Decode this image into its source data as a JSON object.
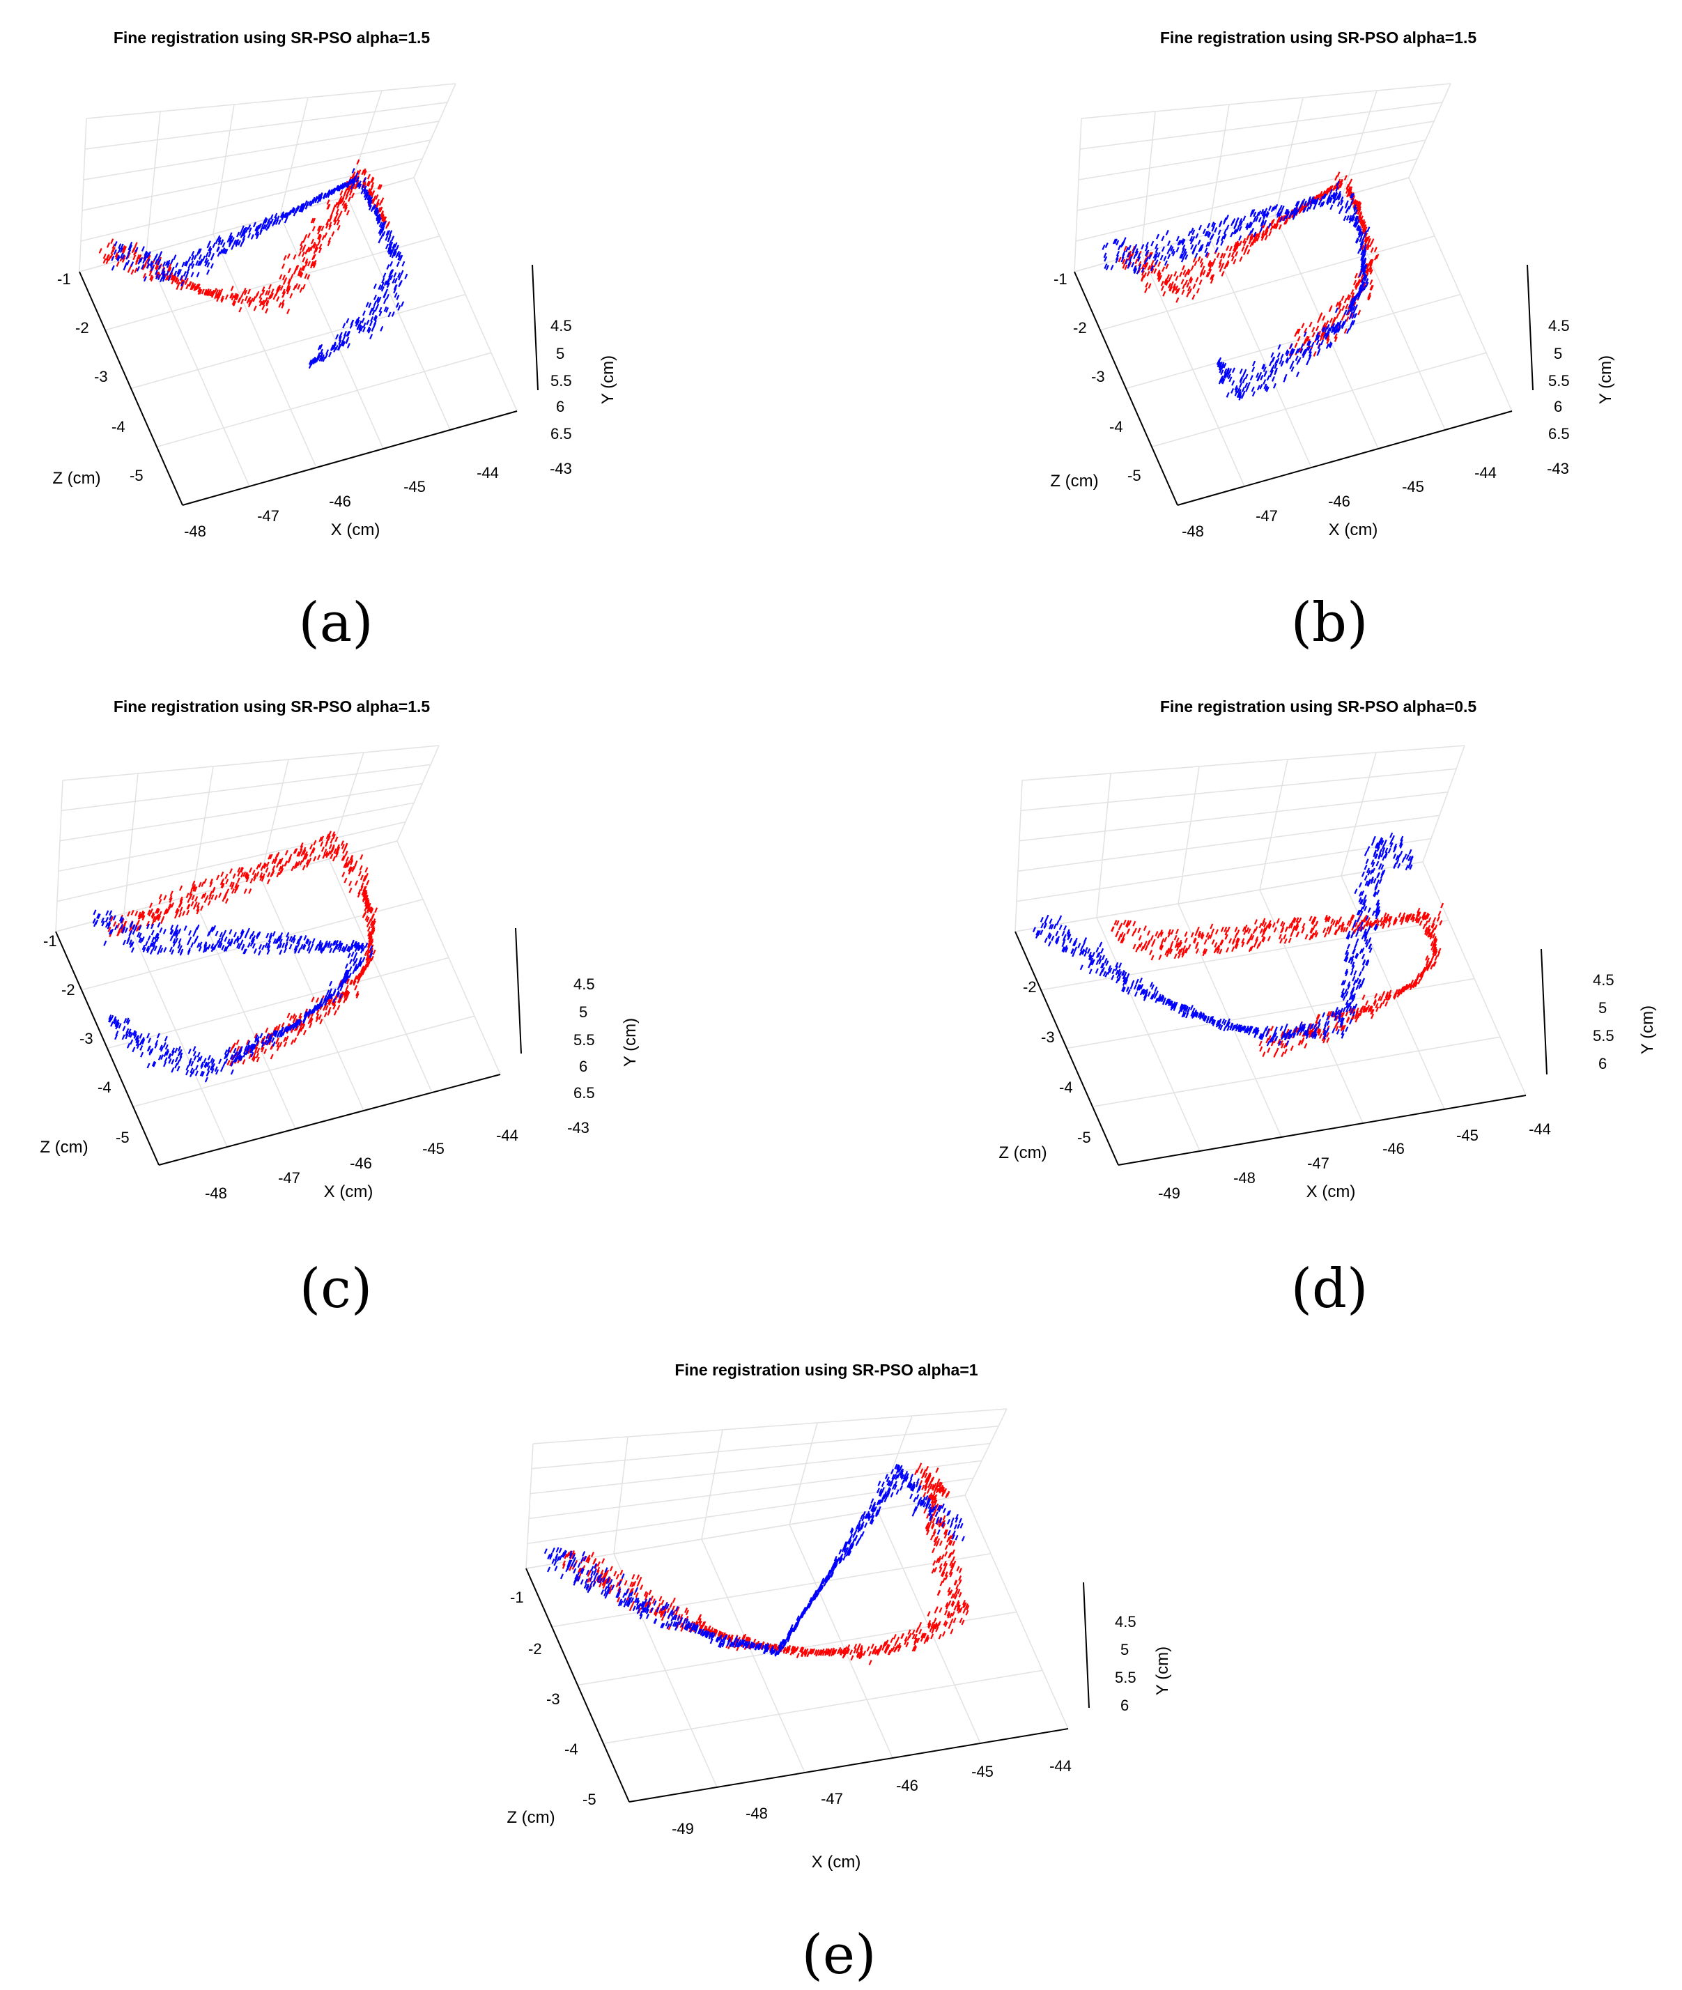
{
  "chart_data": [
    {
      "type": "scatter",
      "id": "a",
      "caption": "(a)",
      "title": "Fine registration using SR-PSO alpha=1.5",
      "xlabel": "X (cm)",
      "ylabel": "Y (cm)",
      "zlabel": "Z (cm)",
      "xticks": [
        "-48",
        "-47",
        "-46",
        "-45",
        "-44",
        "-43"
      ],
      "yticks": [
        "4.5",
        "5",
        "5.5",
        "6",
        "6.5"
      ],
      "zticks": [
        "-1",
        "-2",
        "-3",
        "-4",
        "-5"
      ],
      "xlim": [
        -48.3,
        -43
      ],
      "ylim": [
        4.3,
        6.6
      ],
      "zlim": [
        -5.4,
        -0.6
      ],
      "grid": true,
      "series": [
        {
          "color": "#ff0000",
          "values": [
            [
              -48.0,
              5.0,
              -0.95
            ],
            [
              -47.7,
              5.2,
              -1.1
            ],
            [
              -47.4,
              5.4,
              -1.3
            ],
            [
              -47.1,
              5.7,
              -1.6
            ],
            [
              -46.8,
              5.9,
              -1.85
            ],
            [
              -46.4,
              6.1,
              -2.05
            ],
            [
              -46.0,
              6.25,
              -2.2
            ],
            [
              -45.7,
              6.3,
              -2.25
            ],
            [
              -44.0,
              4.6,
              -0.95
            ],
            [
              -43.9,
              5.0,
              -1.3
            ],
            [
              -43.85,
              5.4,
              -1.8
            ]
          ]
        },
        {
          "color": "#0000ff",
          "values": [
            [
              -47.85,
              5.1,
              -1.0
            ],
            [
              -47.5,
              5.3,
              -1.2
            ],
            [
              -47.2,
              5.6,
              -1.5
            ],
            [
              -44.05,
              4.7,
              -1.0
            ],
            [
              -43.95,
              5.1,
              -1.5
            ],
            [
              -43.9,
              5.5,
              -2.1
            ],
            [
              -44.0,
              5.9,
              -2.6
            ],
            [
              -44.3,
              6.2,
              -3.0
            ],
            [
              -44.8,
              6.4,
              -3.2
            ],
            [
              -45.3,
              6.5,
              -3.4
            ],
            [
              -45.7,
              6.5,
              -3.55
            ]
          ]
        }
      ]
    },
    {
      "type": "scatter",
      "id": "b",
      "caption": "(b)",
      "title": "Fine registration using SR-PSO alpha=1.5",
      "xlabel": "X (cm)",
      "ylabel": "Y (cm)",
      "zlabel": "Z (cm)",
      "xticks": [
        "-48",
        "-47",
        "-46",
        "-45",
        "-44",
        "-43"
      ],
      "yticks": [
        "4.5",
        "5",
        "5.5",
        "6",
        "6.5"
      ],
      "zticks": [
        "-1",
        "-2",
        "-3",
        "-4",
        "-5"
      ],
      "xlim": [
        -48.3,
        -43
      ],
      "ylim": [
        4.3,
        6.6
      ],
      "zlim": [
        -5.4,
        -0.6
      ],
      "grid": true,
      "series": [
        {
          "color": "#ff0000",
          "values": [
            [
              -47.7,
              5.0,
              -1.1
            ],
            [
              -47.4,
              5.3,
              -1.5
            ],
            [
              -47.1,
              5.6,
              -1.8
            ],
            [
              -44.2,
              4.7,
              -1.0
            ],
            [
              -44.1,
              5.1,
              -1.5
            ],
            [
              -44.2,
              5.6,
              -2.3
            ],
            [
              -44.6,
              6.0,
              -2.8
            ],
            [
              -45.2,
              6.3,
              -3.1
            ],
            [
              -45.8,
              6.4,
              -3.3
            ]
          ]
        },
        {
          "color": "#0000ff",
          "values": [
            [
              -47.9,
              5.0,
              -0.9
            ],
            [
              -47.6,
              5.2,
              -1.2
            ],
            [
              -44.3,
              4.8,
              -1.2
            ],
            [
              -44.2,
              5.3,
              -1.9
            ],
            [
              -44.4,
              5.8,
              -2.6
            ],
            [
              -44.9,
              6.2,
              -3.1
            ],
            [
              -45.5,
              6.4,
              -3.3
            ],
            [
              -46.2,
              6.5,
              -3.5
            ],
            [
              -46.8,
              6.5,
              -3.7
            ],
            [
              -46.9,
              6.2,
              -3.1
            ]
          ]
        }
      ]
    },
    {
      "type": "scatter",
      "id": "c",
      "caption": "(c)",
      "title": "Fine registration using SR-PSO alpha=1.5",
      "xlabel": "X (cm)",
      "ylabel": "Y (cm)",
      "zlabel": "Z (cm)",
      "xticks": [
        "-48",
        "-47",
        "-46",
        "-45",
        "-44",
        "-43"
      ],
      "yticks": [
        "4.5",
        "5",
        "5.5",
        "6",
        "6.5"
      ],
      "zticks": [
        "-1",
        "-2",
        "-3",
        "-4",
        "-5"
      ],
      "xlim": [
        -48.3,
        -43
      ],
      "ylim": [
        4.3,
        6.6
      ],
      "zlim": [
        -5.4,
        -0.6
      ],
      "grid": true,
      "series": [
        {
          "color": "#ff0000",
          "values": [
            [
              -47.6,
              5.3,
              -1.3
            ],
            [
              -44.1,
              4.6,
              -1.0
            ],
            [
              -44.0,
              5.0,
              -1.5
            ],
            [
              -43.95,
              5.5,
              -2.2
            ],
            [
              -44.2,
              6.0,
              -2.9
            ],
            [
              -44.7,
              6.3,
              -3.3
            ],
            [
              -45.3,
              6.45,
              -3.5
            ],
            [
              -46.0,
              6.55,
              -3.7
            ],
            [
              -46.7,
              6.6,
              -3.85
            ]
          ]
        },
        {
          "color": "#0000ff",
          "values": [
            [
              -47.8,
              5.1,
              -1.1
            ],
            [
              -47.5,
              5.4,
              -1.5
            ],
            [
              -44.2,
              5.8,
              -2.7
            ],
            [
              -44.8,
              6.2,
              -3.2
            ],
            [
              -45.5,
              6.45,
              -3.55
            ],
            [
              -46.3,
              6.55,
              -3.75
            ],
            [
              -47.0,
              6.6,
              -3.9
            ],
            [
              -47.6,
              6.4,
              -3.6
            ],
            [
              -48.0,
              6.1,
              -3.1
            ],
            [
              -48.2,
              5.9,
              -2.7
            ]
          ]
        }
      ]
    },
    {
      "type": "scatter",
      "id": "d",
      "caption": "(d)",
      "title": "Fine registration using SR-PSO alpha=0.5",
      "xlabel": "X (cm)",
      "ylabel": "Y (cm)",
      "zlabel": "Z (cm)",
      "xticks": [
        "-49",
        "-48",
        "-47",
        "-46",
        "-45",
        "-44"
      ],
      "yticks": [
        "4.5",
        "5",
        "5.5",
        "6"
      ],
      "zticks": [
        "-2",
        "-3",
        "-4",
        "-5"
      ],
      "xlim": [
        -49.4,
        -43.6
      ],
      "ylim": [
        4.3,
        6.2
      ],
      "zlim": [
        -5.4,
        -1.2
      ],
      "grid": true,
      "series": [
        {
          "color": "#ff0000",
          "values": [
            [
              -48.2,
              5.1,
              -1.9
            ],
            [
              -47.8,
              5.3,
              -2.2
            ],
            [
              -44.0,
              5.0,
              -2.6
            ],
            [
              -44.1,
              5.5,
              -3.1
            ],
            [
              -44.5,
              5.8,
              -3.4
            ],
            [
              -45.2,
              6.0,
              -3.6
            ],
            [
              -46.0,
              6.1,
              -3.8
            ],
            [
              -46.8,
              6.1,
              -3.9
            ]
          ]
        },
        {
          "color": "#0000ff",
          "values": [
            [
              -49.2,
              5.0,
              -1.6
            ],
            [
              -48.8,
              5.3,
              -2.0
            ],
            [
              -48.3,
              5.6,
              -2.6
            ],
            [
              -47.8,
              5.8,
              -3.1
            ],
            [
              -47.2,
              6.0,
              -3.5
            ],
            [
              -46.5,
              6.1,
              -3.8
            ],
            [
              -45.6,
              6.05,
              -3.7
            ],
            [
              -44.3,
              4.5,
              -1.4
            ],
            [
              -44.0,
              4.7,
              -1.8
            ]
          ]
        }
      ]
    },
    {
      "type": "scatter",
      "id": "e",
      "caption": "(e)",
      "title": "Fine registration using SR-PSO alpha=1",
      "xlabel": "X (cm)",
      "ylabel": "Y (cm)",
      "zlabel": "Z (cm)",
      "xticks": [
        "-49",
        "-48",
        "-47",
        "-46",
        "-45",
        "-44"
      ],
      "yticks": [
        "4.5",
        "5",
        "5.5",
        "6"
      ],
      "zticks": [
        "-1",
        "-2",
        "-3",
        "-4",
        "-5"
      ],
      "xlim": [
        -49.4,
        -43.6
      ],
      "ylim": [
        4.3,
        6.2
      ],
      "zlim": [
        -5.4,
        -0.6
      ],
      "grid": true,
      "series": [
        {
          "color": "#ff0000",
          "values": [
            [
              -49.0,
              5.0,
              -1.1
            ],
            [
              -48.5,
              5.3,
              -1.6
            ],
            [
              -48.0,
              5.6,
              -2.2
            ],
            [
              -47.3,
              5.9,
              -2.8
            ],
            [
              -46.5,
              6.05,
              -3.2
            ],
            [
              -45.6,
              6.1,
              -3.4
            ],
            [
              -44.9,
              6.0,
              -3.3
            ],
            [
              -44.4,
              5.8,
              -3.0
            ],
            [
              -44.2,
              4.5,
              -0.8
            ],
            [
              -44.0,
              4.8,
              -1.2
            ]
          ]
        },
        {
          "color": "#0000ff",
          "values": [
            [
              -49.2,
              5.0,
              -1.0
            ],
            [
              -48.7,
              5.3,
              -1.5
            ],
            [
              -48.2,
              5.6,
              -2.1
            ],
            [
              -47.5,
              5.9,
              -2.7
            ],
            [
              -46.8,
              6.05,
              -3.1
            ],
            [
              -44.5,
              4.4,
              -0.7
            ],
            [
              -44.3,
              4.8,
              -1.3
            ],
            [
              -44.1,
              5.1,
              -1.8
            ]
          ]
        }
      ]
    }
  ]
}
